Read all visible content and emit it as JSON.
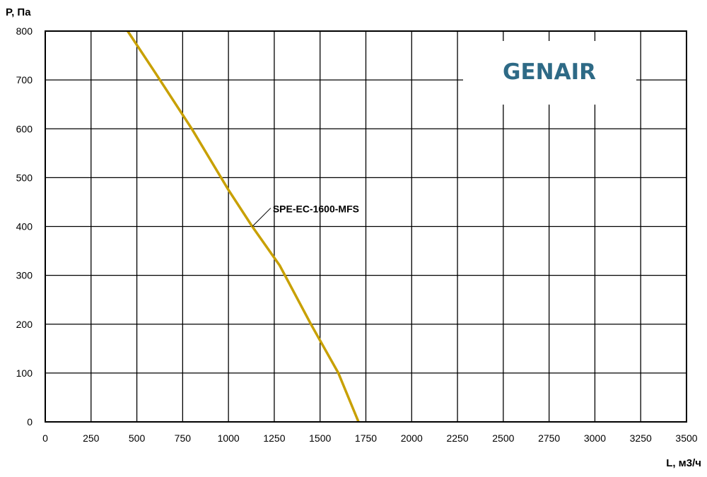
{
  "chart_data": {
    "type": "line",
    "ylabel": "P, Па",
    "xlabel": "L, м3/ч",
    "xlim": [
      0,
      3500
    ],
    "ylim": [
      0,
      800
    ],
    "x_ticks": [
      0,
      250,
      500,
      750,
      1000,
      1250,
      1500,
      1750,
      2000,
      2250,
      2500,
      2750,
      3000,
      3250,
      3500
    ],
    "y_ticks": [
      0,
      100,
      200,
      300,
      400,
      500,
      600,
      700,
      800
    ],
    "grid": true,
    "series": [
      {
        "name": "SPE-EC-1600-MFS",
        "color": "#c8a000",
        "x": [
          450,
          600,
          800,
          1000,
          1130,
          1280,
          1450,
          1600,
          1710
        ],
        "y": [
          800,
          715,
          600,
          475,
          400,
          320,
          200,
          100,
          0
        ]
      }
    ],
    "annotation": {
      "text": "SPE-EC-1600-MFS",
      "x": 1130,
      "y": 400
    }
  },
  "brand": {
    "name": "GENAIR",
    "color": "#2e6a86"
  }
}
